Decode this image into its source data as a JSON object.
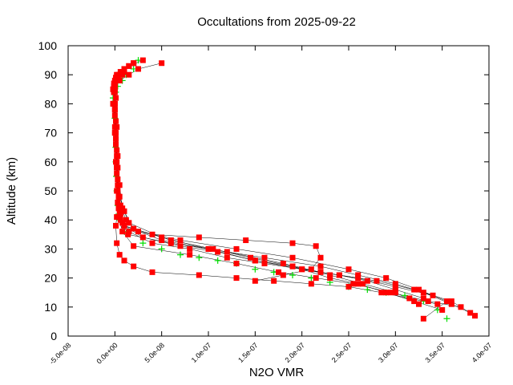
{
  "chart_data": {
    "type": "scatter",
    "title": "Occultations from 2025-09-22",
    "xlabel": "N2O VMR",
    "ylabel": "Altitude (km)",
    "xlim": [
      -5e-08,
      4e-07
    ],
    "ylim": [
      0,
      100
    ],
    "x_ticks": [
      -5e-08,
      0,
      5e-08,
      1e-07,
      1.5e-07,
      2e-07,
      2.5e-07,
      3e-07,
      3.5e-07,
      4e-07
    ],
    "x_tick_labels": [
      "-5.0e-08",
      "0.0e+00",
      "5.0e-08",
      "1.0e-07",
      "1.5e-07",
      "2.0e-07",
      "2.5e-07",
      "3.0e-07",
      "3.5e-07",
      "4.0e-07"
    ],
    "y_ticks": [
      0,
      10,
      20,
      30,
      40,
      50,
      60,
      70,
      80,
      90,
      100
    ],
    "y_tick_labels": [
      "0",
      "10",
      "20",
      "30",
      "40",
      "50",
      "60",
      "70",
      "80",
      "90",
      "100"
    ],
    "grid": false,
    "legend": "none",
    "colors": {
      "profiles": "#ff0000",
      "mean": "#00dd00",
      "connector": "#000000"
    },
    "series": [
      {
        "marker": "plus",
        "color": "#00dd00",
        "x": [
          2.5e-08,
          2e-08,
          1.2e-08,
          8e-09,
          3e-09,
          1e-09,
          -2e-09,
          -1e-09,
          0,
          5e-10,
          8e-10,
          1e-09,
          1.5e-09,
          2e-09,
          3e-09,
          4e-09,
          5e-09,
          1e-08,
          3e-08,
          5e-08,
          7e-08,
          9e-08,
          1.1e-07,
          1.3e-07,
          1.5e-07,
          1.7e-07,
          1.9e-07,
          2.1e-07,
          2.3e-07,
          2.5e-07,
          2.7e-07,
          2.9e-07,
          3.1e-07,
          3.3e-07,
          3.45e-07,
          3.55e-07
        ],
        "y": [
          95,
          92,
          90,
          88,
          86,
          84,
          82,
          80,
          75,
          70,
          65,
          60,
          55,
          50,
          45,
          42,
          40,
          36,
          32,
          30,
          28,
          27,
          26,
          25,
          23,
          22,
          21,
          20,
          18.5,
          17,
          16,
          15,
          14,
          12,
          9,
          6
        ]
      },
      {
        "marker": "square",
        "color": "#ff0000",
        "profiles": [
          {
            "x": [
              5e-08,
              2.5e-08,
              1.5e-08,
              5e-09,
              0,
              -2e-09,
              0,
              1e-09,
              2e-09,
              4e-09,
              6e-09,
              1.5e-08,
              4e-08,
              8e-08,
              1.2e-07,
              1.6e-07,
              2e-07,
              2.4e-07,
              2.8e-07,
              3.2e-07,
              3.6e-07,
              3.85e-07
            ],
            "y": [
              94,
              92,
              90,
              88,
              85,
              80,
              70,
              60,
              50,
              45,
              40,
              36,
              32,
              30,
              27,
              25,
              23,
              21,
              19,
              16,
              12,
              7
            ]
          },
          {
            "x": [
              3e-08,
              1.5e-08,
              3e-09,
              -2e-09,
              -1e-09,
              0,
              2e-09,
              3e-09,
              4e-09,
              1e-08,
              5e-08,
              1e-07,
              1.5e-07,
              2e-07,
              2.4e-07,
              2.7e-07,
              3e-07,
              3.3e-07
            ],
            "y": [
              95,
              93,
              89,
              85,
              80,
              70,
              60,
              50,
              44,
              38,
              33,
              30,
              26,
              23,
              21,
              19,
              16,
              13
            ]
          },
          {
            "x": [
              2e-08,
              1e-08,
              2e-09,
              -1e-09,
              1e-09,
              2e-09,
              3e-09,
              5e-09,
              8e-09,
              2e-08,
              6e-08,
              1.05e-07,
              1.45e-07,
              1.9e-07,
              2.3e-07,
              2.65e-07,
              3e-07,
              3.25e-07
            ],
            "y": [
              94,
              92,
              90,
              87,
              82,
              72,
              62,
              52,
              44,
              37,
              33,
              30,
              27,
              24,
              21,
              18,
              15,
              11
            ]
          },
          {
            "x": [
              1.5e-08,
              6e-09,
              1e-09,
              0,
              0,
              1e-09,
              2e-09,
              4e-09,
              6e-09,
              1e-08,
              3e-08,
              7e-08,
              1.1e-07,
              1.5e-07,
              1.9e-07,
              2.3e-07,
              2.6e-07,
              2.9e-07,
              3.2e-07,
              3.5e-07
            ],
            "y": [
              93,
              91,
              89,
              86,
              80,
              68,
              58,
              48,
              42,
              38,
              34,
              31,
              29,
              26,
              24,
              20,
              18,
              15,
              12,
              9
            ]
          },
          {
            "x": [
              1e-08,
              4e-09,
              0,
              -1e-09,
              0,
              1e-09,
              2e-09,
              3e-09,
              4e-09,
              8e-09,
              2e-08,
              8e-08,
              1.3e-07,
              1.75e-07,
              2.15e-07,
              2.55e-07,
              2.95e-07,
              3.35e-07,
              3.7e-07
            ],
            "y": [
              92,
              90,
              88,
              84,
              76,
              66,
              56,
              46,
              41,
              36,
              31,
              28,
              25,
              22,
              20,
              18,
              15,
              12,
              10
            ]
          },
          {
            "x": [
              5e-09,
              1e-09,
              -1e-09,
              0,
              1e-09,
              3e-09,
              4e-09,
              5e-09,
              8e-09,
              1.4e-08,
              6e-08,
              1.2e-07,
              1.8e-07,
              2.2e-07,
              2.6e-07,
              3e-07,
              3.4e-07
            ],
            "y": [
              90,
              88,
              86,
              80,
              70,
              58,
              48,
              43,
              39,
              35,
              32,
              29,
              25,
              22,
              20,
              17,
              14
            ]
          },
          {
            "x": [
              2e-08,
              8e-09,
              2e-09,
              0,
              1e-09,
              2e-09,
              3e-09,
              5e-09,
              1e-08,
              4e-08,
              9e-08,
              1.4e-07,
              1.9e-07,
              2.15e-07,
              2.2e-07,
              2.1e-07,
              1.8e-07,
              1.5e-07
            ],
            "y": [
              94,
              91,
              88,
              84,
              74,
              64,
              54,
              44,
              38,
              35,
              34,
              33,
              32,
              31,
              27,
              23,
              21,
              19
            ]
          },
          {
            "x": [
              1e-08,
              3e-09,
              0,
              -1e-09,
              0,
              1e-09,
              2e-09,
              5e-09,
              1e-08,
              1.5e-08,
              5e-08,
              1e-07,
              1.6e-07,
              2.2e-07,
              2.6e-07,
              3e-07,
              3.3e-07,
              3.6e-07,
              3.8e-07
            ],
            "y": [
              91,
              89,
              87,
              84,
              78,
              68,
              58,
              48,
              43,
              39,
              34,
              30,
              27,
              24,
              21,
              18,
              15,
              11,
              8
            ]
          },
          {
            "x": [
              8e-09,
              2e-09,
              -1e-09,
              -1e-09,
              0,
              2e-09,
              3e-09,
              6e-09,
              1.2e-08,
              2.5e-08,
              7e-08,
              1.3e-07,
              1.9e-07,
              2.5e-07,
              2.9e-07,
              3.25e-07,
              3.55e-07,
              3.3e-07
            ],
            "y": [
              90,
              88,
              85,
              80,
              72,
              62,
              52,
              45,
              40,
              36,
              33,
              30,
              27,
              23,
              20,
              16,
              12,
              6
            ]
          },
          {
            "x": [
              3e-09,
              0,
              -1e-09,
              0,
              1e-09,
              2e-09,
              4e-09,
              6e-09,
              2e-09,
              1e-09,
              2e-09,
              5e-09,
              1e-08,
              2e-08,
              4e-08,
              9e-08,
              1.3e-07,
              1.7e-07,
              2.1e-07,
              2.5e-07,
              2.85e-07,
              3.15e-07,
              3.45e-07
            ],
            "y": [
              89,
              87,
              84,
              78,
              68,
              58,
              48,
              44,
              41,
              38,
              32,
              28,
              26,
              24,
              22,
              21,
              20,
              19,
              18,
              17,
              15,
              13,
              11
            ]
          }
        ]
      }
    ]
  }
}
